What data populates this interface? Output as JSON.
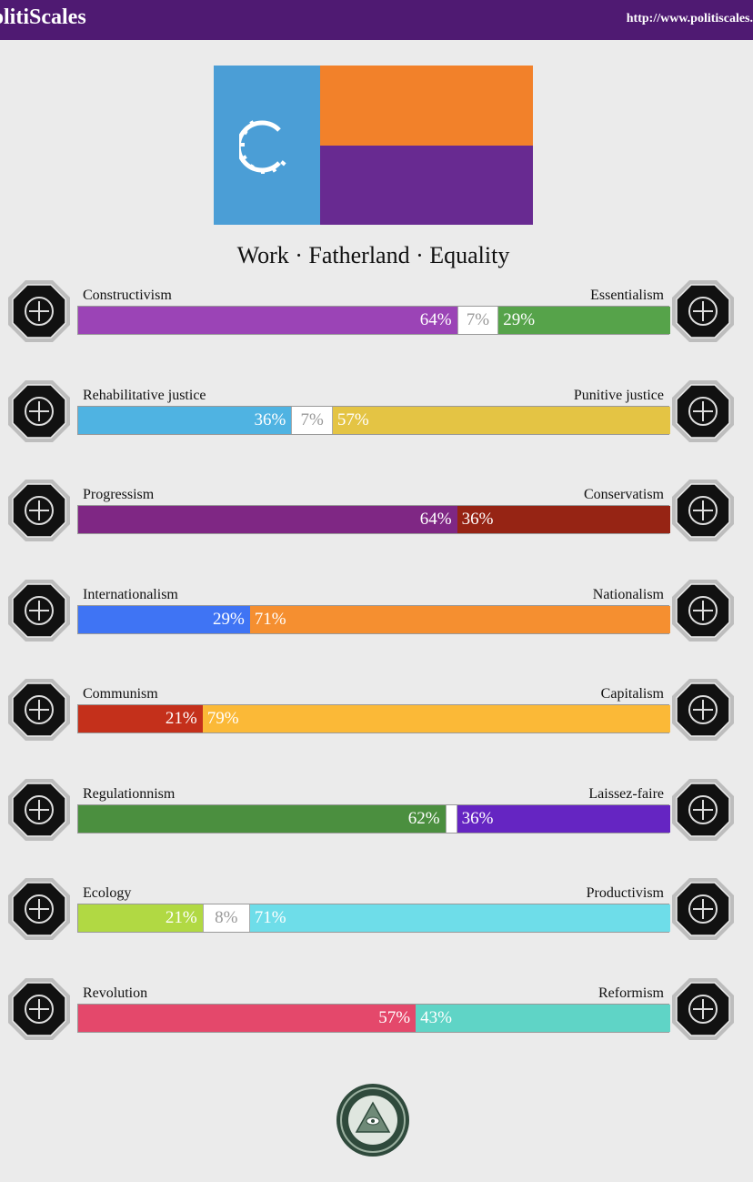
{
  "header": {
    "brand": "olitiScales",
    "url": "http://www.politiscales.ne"
  },
  "flag": {
    "colors": {
      "left": "#4b9ed6",
      "top_right": "#f2812a",
      "bottom_right": "#682a91"
    },
    "emblem_icon": "gear-c-icon"
  },
  "motto": "Work · Fatherland · Equality",
  "axes": [
    {
      "left_label": "Constructivism",
      "right_label": "Essentialism",
      "left_value": 64,
      "mid_value": 7,
      "right_value": 29,
      "left_text": "64%",
      "mid_text": "7%",
      "right_text": "29%",
      "left_color": "#9b44b6",
      "right_color": "#56a34a",
      "left_icon": "eye-icon",
      "right_icon": "flower-icon"
    },
    {
      "left_label": "Rehabilitative justice",
      "right_label": "Punitive justice",
      "left_value": 36,
      "mid_value": 7,
      "right_value": 57,
      "left_text": "36%",
      "mid_text": "7%",
      "right_text": "57%",
      "left_color": "#4fb3e2",
      "right_color": "#e4c444",
      "left_icon": "handshake-icon",
      "right_icon": "prison-bars-icon"
    },
    {
      "left_label": "Progressism",
      "right_label": "Conservatism",
      "left_value": 64,
      "mid_value": 0,
      "right_value": 36,
      "left_text": "64%",
      "mid_text": "",
      "right_text": "36%",
      "left_color": "#7f2784",
      "right_color": "#962414",
      "left_icon": "comet-icon",
      "right_icon": "quill-icon"
    },
    {
      "left_label": "Internationalism",
      "right_label": "Nationalism",
      "left_value": 29,
      "mid_value": 0,
      "right_value": 71,
      "left_text": "29%",
      "mid_text": "",
      "right_text": "71%",
      "left_color": "#3f74f4",
      "right_color": "#f58f30",
      "left_icon": "globe-icon",
      "right_icon": "flag-icon"
    },
    {
      "left_label": "Communism",
      "right_label": "Capitalism",
      "left_value": 21,
      "mid_value": 0,
      "right_value": 79,
      "left_text": "21%",
      "mid_text": "",
      "right_text": "79%",
      "left_color": "#c4301b",
      "right_color": "#fbb937",
      "left_icon": "hammer-sickle-icon",
      "right_icon": "money-bag-icon"
    },
    {
      "left_label": "Regulationnism",
      "right_label": "Laissez-faire",
      "left_value": 62,
      "mid_value": 2,
      "right_value": 36,
      "left_text": "62%",
      "mid_text": "",
      "right_text": "36%",
      "left_color": "#4b8f3f",
      "right_color": "#6525c2",
      "left_icon": "ruler-icon",
      "right_icon": "butterfly-icon"
    },
    {
      "left_label": "Ecology",
      "right_label": "Productivism",
      "left_value": 21,
      "mid_value": 8,
      "right_value": 71,
      "left_text": "21%",
      "mid_text": "8%",
      "right_text": "71%",
      "left_color": "#b1d943",
      "right_color": "#6edde9",
      "left_icon": "sprout-icon",
      "right_icon": "factory-gear-icon"
    },
    {
      "left_label": "Revolution",
      "right_label": "Reformism",
      "left_value": 57,
      "mid_value": 0,
      "right_value": 43,
      "left_text": "57%",
      "mid_text": "",
      "right_text": "43%",
      "left_color": "#e4486b",
      "right_color": "#5fd4c6",
      "left_icon": "fist-icon",
      "right_icon": "ballot-icon"
    }
  ],
  "footer": {
    "seal_icon": "eye-pyramid-seal-icon"
  }
}
